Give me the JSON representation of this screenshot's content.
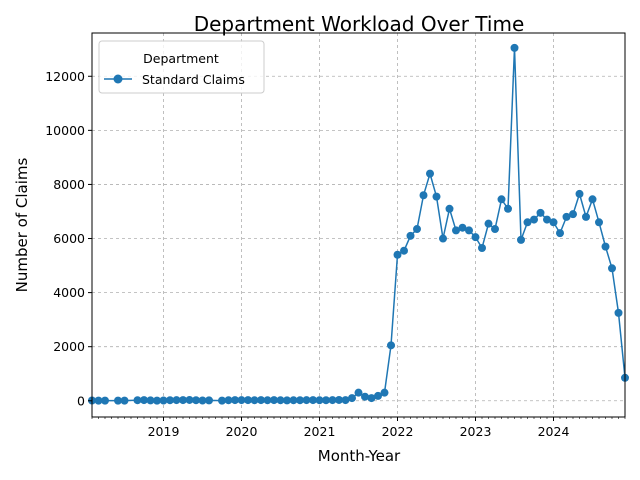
{
  "chart_data": {
    "type": "line",
    "title": "Department Workload Over Time",
    "xlabel": "Month-Year",
    "ylabel": "Number of Claims",
    "legend": {
      "title": "Department",
      "placement": "top-left"
    },
    "grid": true,
    "xlim": [
      "2018-02",
      "2024-12"
    ],
    "ylim": [
      -600,
      13600
    ],
    "x_ticks": [
      "2019",
      "2020",
      "2021",
      "2022",
      "2023",
      "2024"
    ],
    "y_ticks": [
      0,
      2000,
      4000,
      6000,
      8000,
      10000,
      12000
    ],
    "series": [
      {
        "name": "Standard Claims",
        "color": "#1f77b4",
        "marker": "circle",
        "points": [
          [
            "2018-02",
            10
          ],
          [
            "2018-03",
            5
          ],
          [
            "2018-04",
            5
          ],
          [
            "2018-06",
            5
          ],
          [
            "2018-07",
            5
          ],
          [
            "2018-09",
            20
          ],
          [
            "2018-10",
            25
          ],
          [
            "2018-11",
            15
          ],
          [
            "2018-12",
            5
          ],
          [
            "2019-01",
            10
          ],
          [
            "2019-02",
            20
          ],
          [
            "2019-03",
            25
          ],
          [
            "2019-04",
            25
          ],
          [
            "2019-05",
            30
          ],
          [
            "2019-06",
            20
          ],
          [
            "2019-07",
            10
          ],
          [
            "2019-08",
            15
          ],
          [
            "2019-10",
            5
          ],
          [
            "2019-11",
            20
          ],
          [
            "2019-12",
            25
          ],
          [
            "2020-01",
            25
          ],
          [
            "2020-02",
            25
          ],
          [
            "2020-03",
            20
          ],
          [
            "2020-04",
            25
          ],
          [
            "2020-05",
            20
          ],
          [
            "2020-06",
            25
          ],
          [
            "2020-07",
            20
          ],
          [
            "2020-08",
            15
          ],
          [
            "2020-09",
            20
          ],
          [
            "2020-10",
            20
          ],
          [
            "2020-11",
            25
          ],
          [
            "2020-12",
            25
          ],
          [
            "2021-01",
            20
          ],
          [
            "2021-02",
            20
          ],
          [
            "2021-03",
            25
          ],
          [
            "2021-04",
            30
          ],
          [
            "2021-05",
            25
          ],
          [
            "2021-06",
            100
          ],
          [
            "2021-07",
            300
          ],
          [
            "2021-08",
            150
          ],
          [
            "2021-09",
            100
          ],
          [
            "2021-10",
            180
          ],
          [
            "2021-11",
            300
          ],
          [
            "2021-12",
            2050
          ],
          [
            "2022-01",
            5400
          ],
          [
            "2022-02",
            5550
          ],
          [
            "2022-03",
            6100
          ],
          [
            "2022-04",
            6350
          ],
          [
            "2022-05",
            7600
          ],
          [
            "2022-06",
            8400
          ],
          [
            "2022-07",
            7550
          ],
          [
            "2022-08",
            6000
          ],
          [
            "2022-09",
            7100
          ],
          [
            "2022-10",
            6300
          ],
          [
            "2022-11",
            6400
          ],
          [
            "2022-12",
            6300
          ],
          [
            "2023-01",
            6050
          ],
          [
            "2023-02",
            5650
          ],
          [
            "2023-03",
            6550
          ],
          [
            "2023-04",
            6350
          ],
          [
            "2023-05",
            7450
          ],
          [
            "2023-06",
            7100
          ],
          [
            "2023-07",
            13050
          ],
          [
            "2023-08",
            5950
          ],
          [
            "2023-09",
            6600
          ],
          [
            "2023-10",
            6700
          ],
          [
            "2023-11",
            6950
          ],
          [
            "2023-12",
            6700
          ],
          [
            "2024-01",
            6600
          ],
          [
            "2024-02",
            6200
          ],
          [
            "2024-03",
            6800
          ],
          [
            "2024-04",
            6900
          ],
          [
            "2024-05",
            7650
          ],
          [
            "2024-06",
            6800
          ],
          [
            "2024-07",
            7450
          ],
          [
            "2024-08",
            6600
          ],
          [
            "2024-09",
            5700
          ],
          [
            "2024-10",
            4900
          ],
          [
            "2024-11",
            3250
          ],
          [
            "2024-12",
            850
          ]
        ]
      }
    ]
  }
}
